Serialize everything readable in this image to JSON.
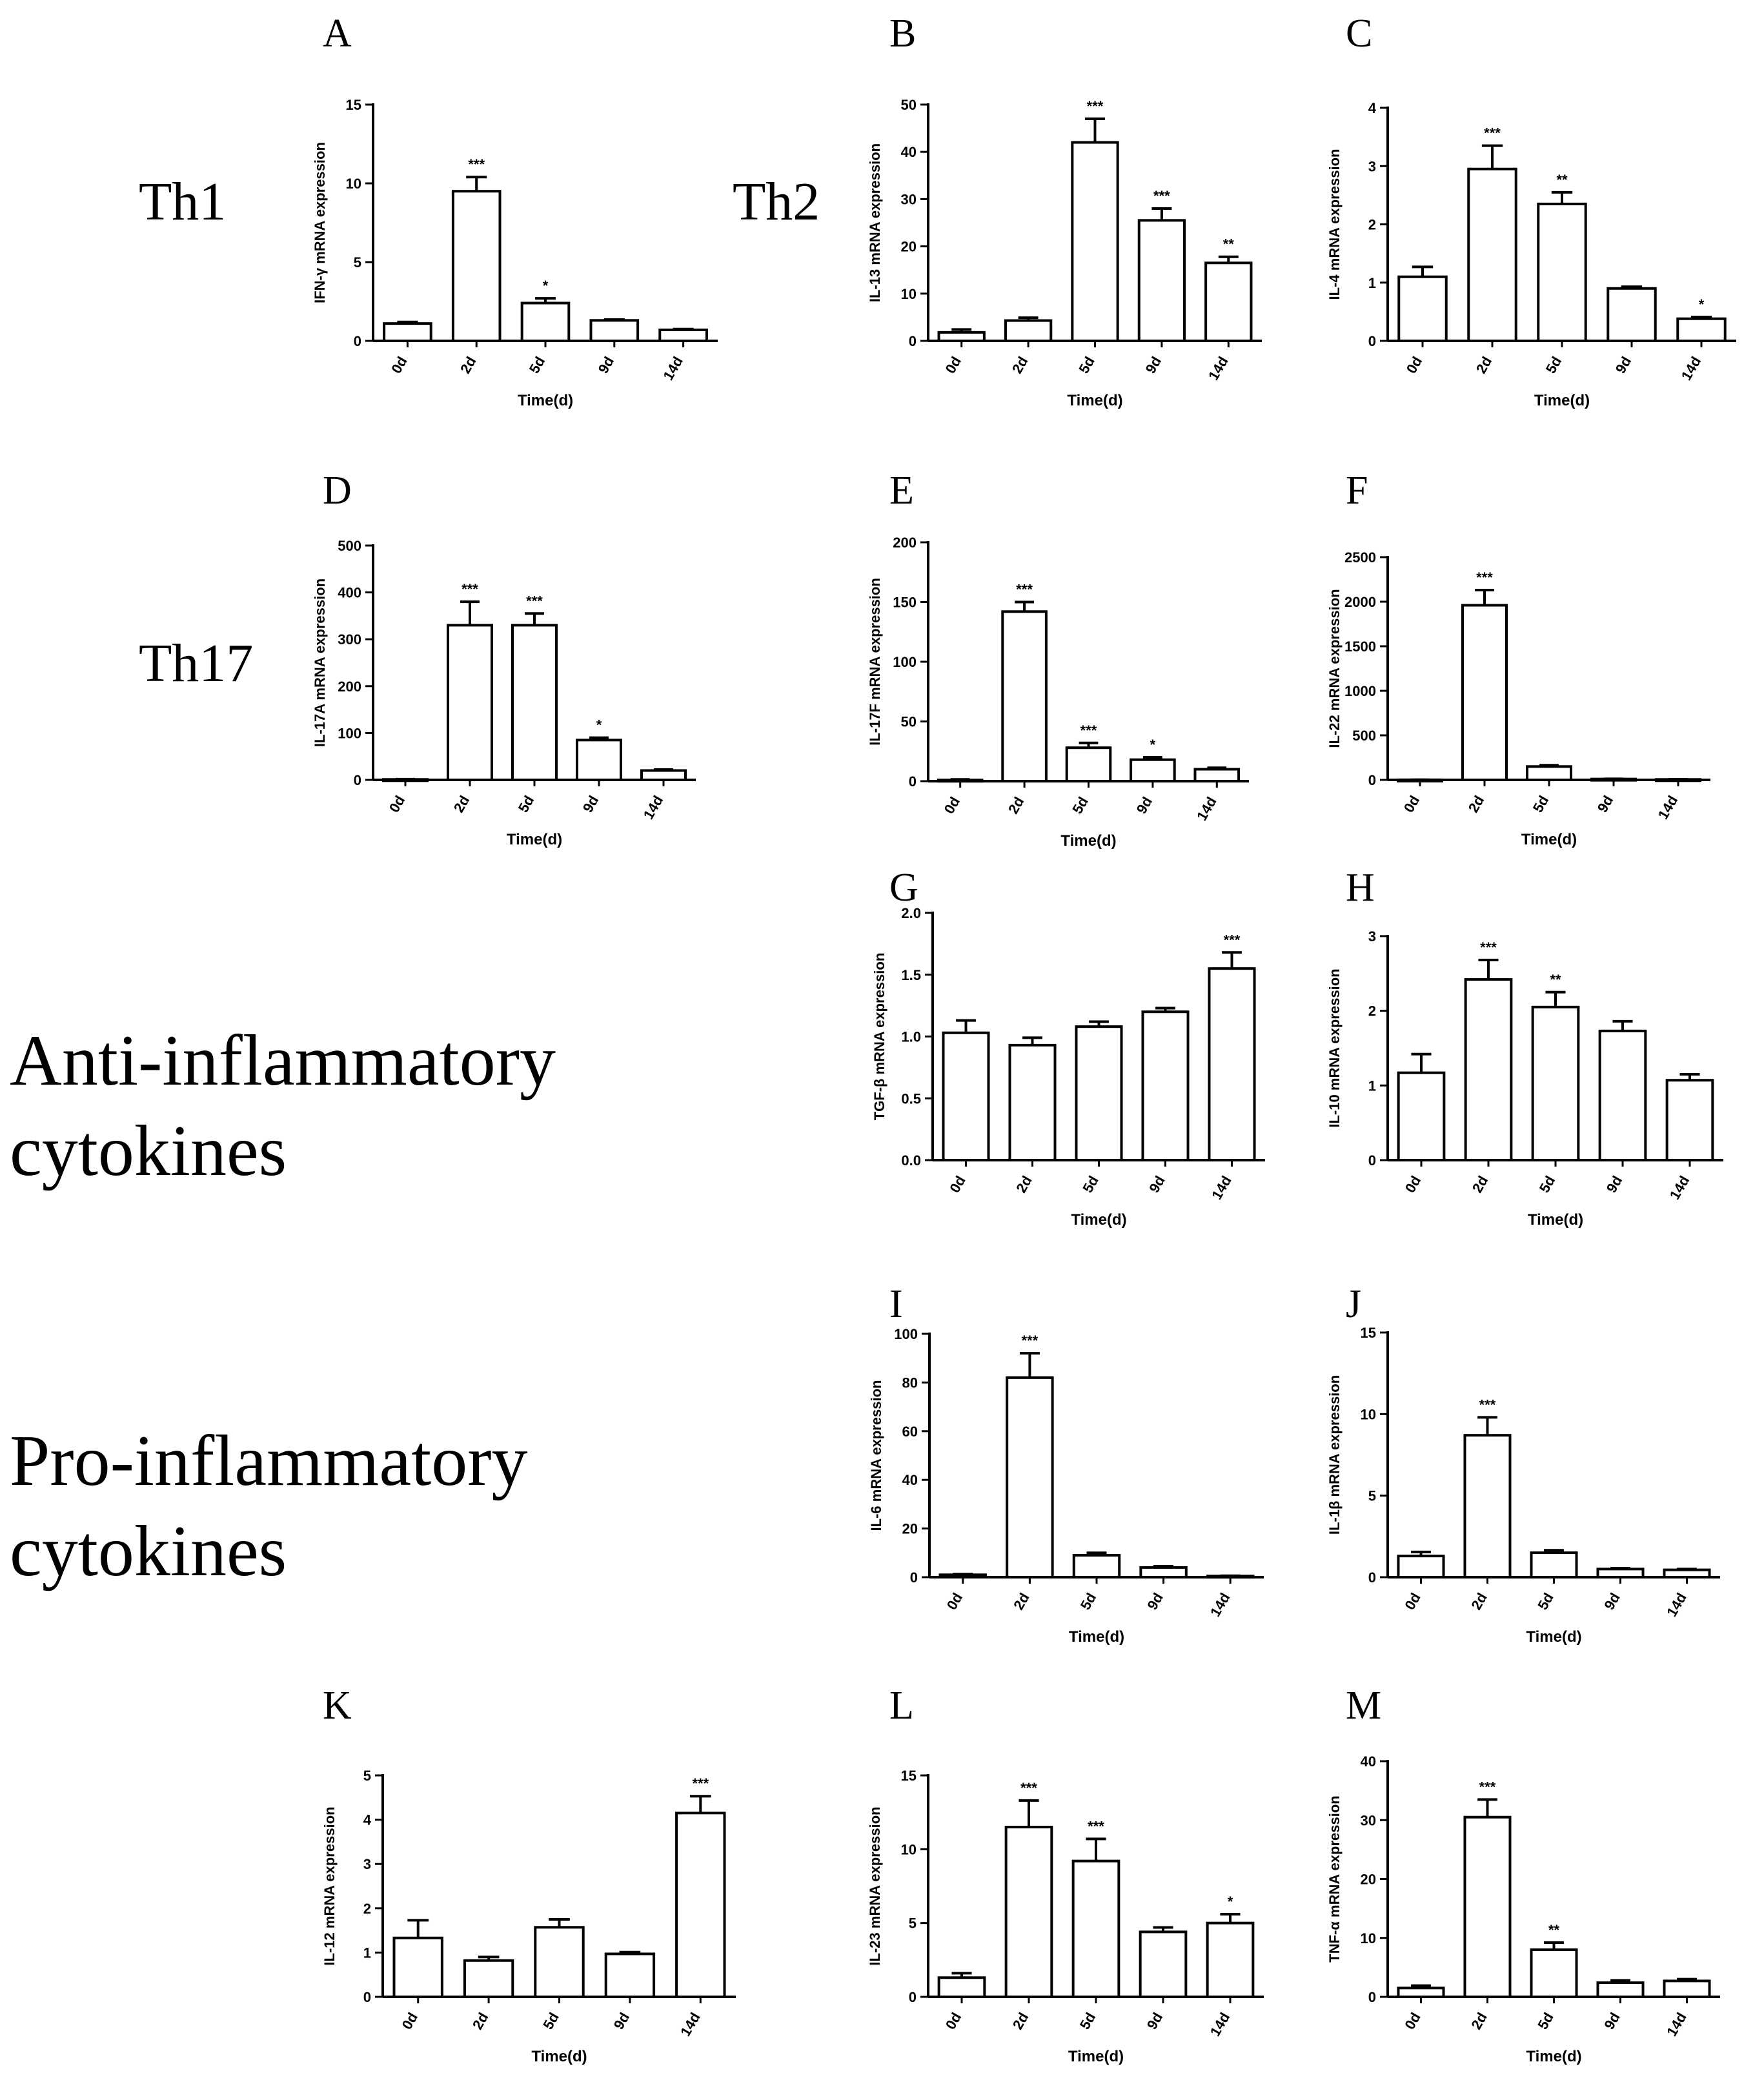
{
  "row_labels": {
    "th1": "Th1",
    "th2": "Th2",
    "th17": "Th17",
    "anti": [
      "Anti-inflammatory",
      "cytokines"
    ],
    "pro": [
      "Pro-inflammatory",
      "cytokines"
    ]
  },
  "chart_data": [
    {
      "panel": "A",
      "type": "bar",
      "title": "",
      "xlabel": "Time(d)",
      "ylabel": "IFN-γ  mRNA expression",
      "categories": [
        "0d",
        "2d",
        "5d",
        "9d",
        "14d"
      ],
      "values": [
        1.1,
        9.5,
        2.4,
        1.3,
        0.7
      ],
      "errors": [
        0.1,
        0.9,
        0.3,
        0.05,
        0.05
      ],
      "sig": [
        "",
        "***",
        "*",
        "",
        ""
      ],
      "ylim": [
        0,
        15
      ],
      "yticks": [
        0,
        5,
        10,
        15
      ]
    },
    {
      "panel": "B",
      "type": "bar",
      "title": "",
      "xlabel": "Time(d)",
      "ylabel": "IL-13 mRNA expression",
      "categories": [
        "0d",
        "2d",
        "5d",
        "9d",
        "14d"
      ],
      "values": [
        1.8,
        4.3,
        42,
        25.5,
        16.5
      ],
      "errors": [
        0.6,
        0.6,
        5,
        2.5,
        1.3
      ],
      "sig": [
        "",
        "",
        "***",
        "***",
        "**"
      ],
      "ylim": [
        0,
        50
      ],
      "yticks": [
        0,
        10,
        20,
        30,
        40,
        50
      ]
    },
    {
      "panel": "C",
      "type": "bar",
      "title": "",
      "xlabel": "Time(d)",
      "ylabel": "IL-4 mRNA expression",
      "categories": [
        "0d",
        "2d",
        "5d",
        "9d",
        "14d"
      ],
      "values": [
        1.1,
        2.95,
        2.35,
        0.9,
        0.38
      ],
      "errors": [
        0.17,
        0.4,
        0.2,
        0.03,
        0.03
      ],
      "sig": [
        "",
        "***",
        "**",
        "",
        "*"
      ],
      "ylim": [
        0,
        4
      ],
      "yticks": [
        0,
        1,
        2,
        3,
        4
      ]
    },
    {
      "panel": "D",
      "type": "bar",
      "title": "",
      "xlabel": "Time(d)",
      "ylabel": "IL-17A mRNA expression",
      "categories": [
        "0d",
        "2d",
        "5d",
        "9d",
        "14d"
      ],
      "values": [
        1,
        330,
        330,
        85,
        20
      ],
      "errors": [
        0.5,
        50,
        25,
        5,
        2
      ],
      "sig": [
        "",
        "***",
        "***",
        "*",
        ""
      ],
      "ylim": [
        0,
        500
      ],
      "yticks": [
        0,
        100,
        200,
        300,
        400,
        500
      ]
    },
    {
      "panel": "E",
      "type": "bar",
      "title": "",
      "xlabel": "Time(d)",
      "ylabel": "IL-17F mRNA expression",
      "categories": [
        "0d",
        "2d",
        "5d",
        "9d",
        "14d"
      ],
      "values": [
        1,
        142,
        28,
        18,
        10
      ],
      "errors": [
        0.5,
        8,
        4,
        2,
        1.2
      ],
      "sig": [
        "",
        "***",
        "***",
        "*",
        ""
      ],
      "ylim": [
        0,
        200
      ],
      "yticks": [
        0,
        50,
        100,
        150,
        200
      ]
    },
    {
      "panel": "F",
      "type": "bar",
      "title": "",
      "xlabel": "Time(d)",
      "ylabel": "IL-22 mRNA expression",
      "categories": [
        "0d",
        "2d",
        "5d",
        "9d",
        "14d"
      ],
      "values": [
        1,
        1960,
        150,
        10,
        5
      ],
      "errors": [
        0.5,
        170,
        15,
        2,
        1
      ],
      "sig": [
        "",
        "***",
        "",
        "",
        ""
      ],
      "ylim": [
        0,
        2500
      ],
      "yticks": [
        0,
        500,
        1000,
        1500,
        2000,
        2500
      ]
    },
    {
      "panel": "G",
      "type": "bar",
      "title": "",
      "xlabel": "Time(d)",
      "ylabel": "TGF-β mRNA expression",
      "categories": [
        "0d",
        "2d",
        "5d",
        "9d",
        "14d"
      ],
      "values": [
        1.03,
        0.93,
        1.08,
        1.2,
        1.55
      ],
      "errors": [
        0.1,
        0.06,
        0.04,
        0.03,
        0.13
      ],
      "sig": [
        "",
        "",
        "",
        "",
        "***"
      ],
      "ylim": [
        0,
        2.0
      ],
      "yticks": [
        0.0,
        0.5,
        1.0,
        1.5,
        2.0
      ]
    },
    {
      "panel": "H",
      "type": "bar",
      "title": "",
      "xlabel": "Time(d)",
      "ylabel": "IL-10 mRNA expression",
      "categories": [
        "0d",
        "2d",
        "5d",
        "9d",
        "14d"
      ],
      "values": [
        1.17,
        2.42,
        2.05,
        1.73,
        1.07
      ],
      "errors": [
        0.25,
        0.26,
        0.2,
        0.13,
        0.08
      ],
      "sig": [
        "",
        "***",
        "**",
        "",
        ""
      ],
      "ylim": [
        0,
        3
      ],
      "yticks": [
        0,
        1,
        2,
        3
      ]
    },
    {
      "panel": "I",
      "type": "bar",
      "title": "",
      "xlabel": "Time(d)",
      "ylabel": "IL-6 mRNA expression",
      "categories": [
        "0d",
        "2d",
        "5d",
        "9d",
        "14d"
      ],
      "values": [
        1,
        82,
        9,
        4,
        0.5
      ],
      "errors": [
        0.3,
        10,
        1,
        0.5,
        0.1
      ],
      "sig": [
        "",
        "***",
        "",
        "",
        ""
      ],
      "ylim": [
        0,
        100
      ],
      "yticks": [
        0,
        20,
        40,
        60,
        80,
        100
      ]
    },
    {
      "panel": "J",
      "type": "bar",
      "title": "",
      "xlabel": "Time(d)",
      "ylabel": "IL-1β  mRNA expression",
      "categories": [
        "0d",
        "2d",
        "5d",
        "9d",
        "14d"
      ],
      "values": [
        1.3,
        8.7,
        1.5,
        0.5,
        0.45
      ],
      "errors": [
        0.25,
        1.1,
        0.15,
        0.05,
        0.05
      ],
      "sig": [
        "",
        "***",
        "",
        "",
        ""
      ],
      "ylim": [
        0,
        15
      ],
      "yticks": [
        0,
        5,
        10,
        15
      ]
    },
    {
      "panel": "K",
      "type": "bar",
      "title": "",
      "xlabel": "Time(d)",
      "ylabel": "IL-12 mRNA expression",
      "categories": [
        "0d",
        "2d",
        "5d",
        "9d",
        "14d"
      ],
      "values": [
        1.33,
        0.82,
        1.57,
        0.97,
        4.15
      ],
      "errors": [
        0.4,
        0.08,
        0.18,
        0.04,
        0.38
      ],
      "sig": [
        "",
        "",
        "",
        "",
        "***"
      ],
      "ylim": [
        0,
        5
      ],
      "yticks": [
        0,
        1,
        2,
        3,
        4,
        5
      ]
    },
    {
      "panel": "L",
      "type": "bar",
      "title": "",
      "xlabel": "Time(d)",
      "ylabel": "IL-23 mRNA expression",
      "categories": [
        "0d",
        "2d",
        "5d",
        "9d",
        "14d"
      ],
      "values": [
        1.3,
        11.5,
        9.2,
        4.4,
        5.0
      ],
      "errors": [
        0.3,
        1.8,
        1.5,
        0.3,
        0.6
      ],
      "sig": [
        "",
        "***",
        "***",
        "",
        "*"
      ],
      "ylim": [
        0,
        15
      ],
      "yticks": [
        0,
        5,
        10,
        15
      ]
    },
    {
      "panel": "M",
      "type": "bar",
      "title": "",
      "xlabel": "Time(d)",
      "ylabel": "TNF-α  mRNA expression",
      "categories": [
        "0d",
        "2d",
        "5d",
        "9d",
        "14d"
      ],
      "values": [
        1.5,
        30.5,
        8,
        2.4,
        2.7
      ],
      "errors": [
        0.4,
        3,
        1.2,
        0.4,
        0.3
      ],
      "sig": [
        "",
        "***",
        "**",
        "",
        ""
      ],
      "ylim": [
        0,
        40
      ],
      "yticks": [
        0,
        10,
        20,
        30,
        40
      ]
    }
  ]
}
